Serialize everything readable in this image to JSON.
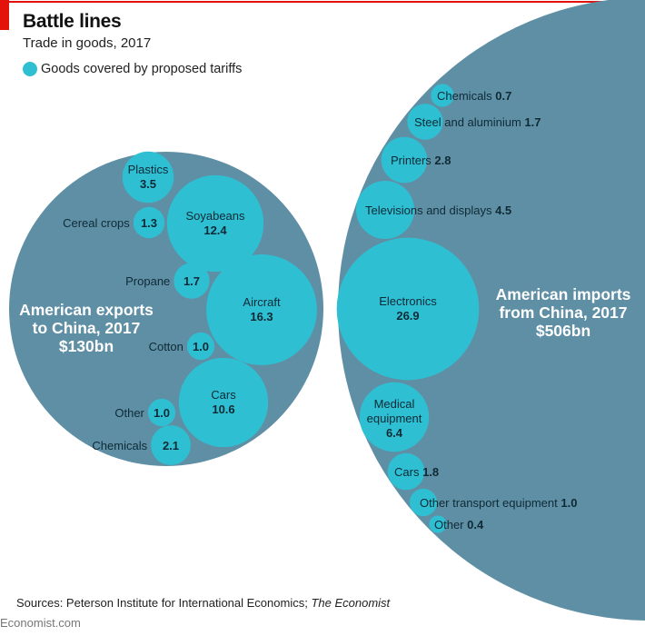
{
  "header": {
    "title": "Battle lines",
    "subtitle": "Trade in goods, 2017",
    "legend_label": "Goods covered by proposed tariffs"
  },
  "colors": {
    "accent_red": "#e3120b",
    "outer_circle": "#5f8fa5",
    "tariff_bubble": "#2fbfd3"
  },
  "footer": {
    "source_prefix": "Sources: Peterson Institute for International Economics; ",
    "source_italic": "The Economist",
    "brand": "Economist.com"
  },
  "chart_data": {
    "type": "bubble",
    "title": "Battle lines",
    "subtitle": "Trade in goods, 2017",
    "units": "$bn",
    "legend": [
      {
        "label": "Goods covered by proposed tariffs",
        "color": "#2fbfd3"
      }
    ],
    "groups": [
      {
        "name": "American exports to China, 2017",
        "title_lines": [
          "American exports",
          "to China, 2017",
          "$130bn"
        ],
        "total": 130,
        "items": [
          {
            "label": "Plastics",
            "value": 3.5
          },
          {
            "label": "Cereal crops",
            "value": 1.3
          },
          {
            "label": "Soyabeans",
            "value": 12.4
          },
          {
            "label": "Propane",
            "value": 1.7
          },
          {
            "label": "Aircraft",
            "value": 16.3
          },
          {
            "label": "Cotton",
            "value": 1.0
          },
          {
            "label": "Cars",
            "value": 10.6
          },
          {
            "label": "Other",
            "value": 1.0
          },
          {
            "label": "Chemicals",
            "value": 2.1
          }
        ]
      },
      {
        "name": "American imports from China, 2017",
        "title_lines": [
          "American imports",
          "from China, 2017",
          "$506bn"
        ],
        "total": 506,
        "items": [
          {
            "label": "Chemicals",
            "value": 0.7
          },
          {
            "label": "Steel and aluminium",
            "value": 1.7
          },
          {
            "label": "Printers",
            "value": 2.8
          },
          {
            "label": "Televisions and displays",
            "value": 4.5
          },
          {
            "label": "Electronics",
            "value": 26.9
          },
          {
            "label": "Medical equipment",
            "value": 6.4
          },
          {
            "label": "Cars",
            "value": 1.8
          },
          {
            "label": "Other transport equipment",
            "value": 1.0
          },
          {
            "label": "Other",
            "value": 0.4
          }
        ]
      }
    ]
  }
}
